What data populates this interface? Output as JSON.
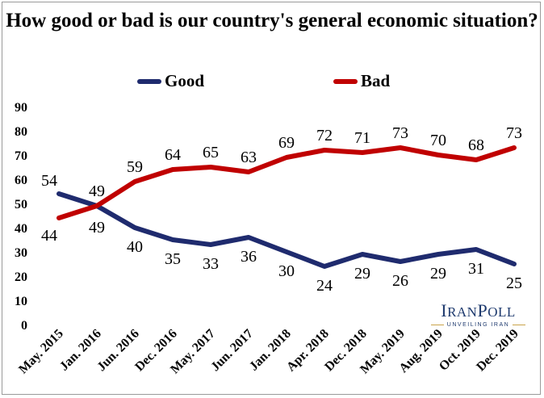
{
  "chart_data": {
    "type": "line",
    "title": "How good or bad is our country's general economic situation?",
    "categories": [
      "May. 2015",
      "Jan. 2016",
      "Jun. 2016",
      "Dec. 2016",
      "May. 2017",
      "Jun. 2017",
      "Jan. 2018",
      "Apr. 2018",
      "Dec. 2018",
      "May. 2019",
      "Aug. 2019",
      "Oct. 2019",
      "Dec. 2019"
    ],
    "series": [
      {
        "name": "Good",
        "color": "#1f2b6e",
        "values": [
          54,
          49,
          40,
          35,
          33,
          36,
          30,
          24,
          29,
          26,
          29,
          31,
          25
        ]
      },
      {
        "name": "Bad",
        "color": "#c00000",
        "values": [
          44,
          49,
          59,
          64,
          65,
          63,
          69,
          72,
          71,
          73,
          70,
          68,
          73
        ]
      }
    ],
    "yticks": [
      0,
      10,
      20,
      30,
      40,
      50,
      60,
      70,
      80,
      90
    ],
    "ylim": [
      0,
      90
    ],
    "grid": false,
    "legend": "top-center"
  },
  "logo": {
    "name_big_1": "I",
    "name_small_1": "RAN",
    "name_big_2": "P",
    "name_small_2": "OLL",
    "tagline": "UNVEILING IRAN"
  }
}
